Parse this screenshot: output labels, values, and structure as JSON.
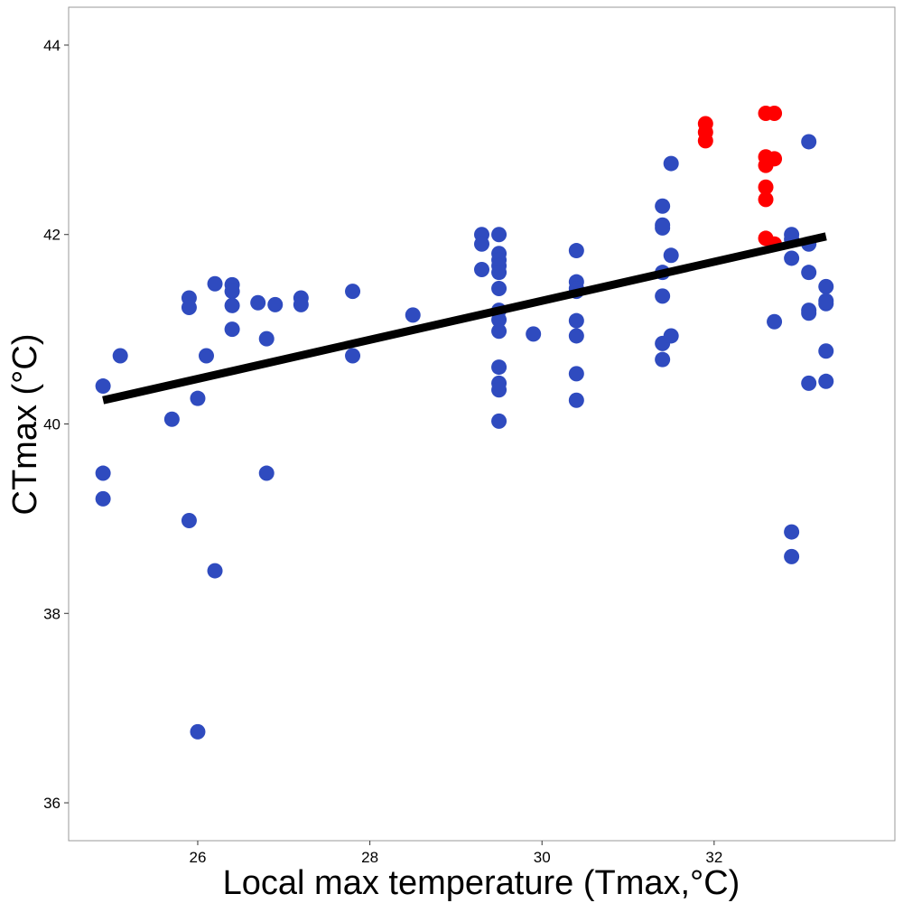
{
  "chart_data": {
    "type": "scatter",
    "title": "",
    "xlabel": "Local max temperature (Tmax,°C)",
    "ylabel": "CTmax (°C)",
    "xlim": [
      24.5,
      34.1
    ],
    "ylim": [
      35.6,
      44.4
    ],
    "x_ticks": [
      26,
      28,
      30,
      32
    ],
    "y_ticks": [
      36,
      38,
      40,
      42,
      44
    ],
    "x_tick_labels": [
      "26",
      "28",
      "30",
      "32"
    ],
    "y_tick_labels": [
      "36",
      "38",
      "40",
      "42",
      "44"
    ],
    "grid": false,
    "legend": "none",
    "colors": {
      "series_blue": "#2f4bbf",
      "series_red": "#ff0000",
      "fit_line": "#000000",
      "frame": "#999999"
    },
    "series": [
      {
        "color": "#2f4bbf",
        "points": [
          {
            "x": 24.9,
            "y": 40.4
          },
          {
            "x": 24.9,
            "y": 39.48
          },
          {
            "x": 24.9,
            "y": 39.21
          },
          {
            "x": 25.1,
            "y": 40.72
          },
          {
            "x": 25.7,
            "y": 40.05
          },
          {
            "x": 25.9,
            "y": 41.33
          },
          {
            "x": 25.9,
            "y": 41.23
          },
          {
            "x": 25.9,
            "y": 38.98
          },
          {
            "x": 26.0,
            "y": 40.27
          },
          {
            "x": 26.0,
            "y": 36.75
          },
          {
            "x": 26.1,
            "y": 40.72
          },
          {
            "x": 26.2,
            "y": 41.48
          },
          {
            "x": 26.2,
            "y": 38.45
          },
          {
            "x": 26.4,
            "y": 41.47
          },
          {
            "x": 26.4,
            "y": 41.4
          },
          {
            "x": 26.4,
            "y": 41.25
          },
          {
            "x": 26.4,
            "y": 41.0
          },
          {
            "x": 26.7,
            "y": 41.28
          },
          {
            "x": 26.8,
            "y": 40.9
          },
          {
            "x": 26.8,
            "y": 39.48
          },
          {
            "x": 26.9,
            "y": 41.26
          },
          {
            "x": 27.2,
            "y": 41.33
          },
          {
            "x": 27.2,
            "y": 41.26
          },
          {
            "x": 27.8,
            "y": 41.4
          },
          {
            "x": 27.8,
            "y": 40.72
          },
          {
            "x": 28.5,
            "y": 41.15
          },
          {
            "x": 29.3,
            "y": 42.0
          },
          {
            "x": 29.3,
            "y": 41.9
          },
          {
            "x": 29.3,
            "y": 41.63
          },
          {
            "x": 29.5,
            "y": 42.0
          },
          {
            "x": 29.5,
            "y": 41.8
          },
          {
            "x": 29.5,
            "y": 41.73
          },
          {
            "x": 29.5,
            "y": 41.67
          },
          {
            "x": 29.5,
            "y": 41.6
          },
          {
            "x": 29.5,
            "y": 41.43
          },
          {
            "x": 29.5,
            "y": 41.2
          },
          {
            "x": 29.5,
            "y": 41.1
          },
          {
            "x": 29.5,
            "y": 40.98
          },
          {
            "x": 29.5,
            "y": 40.6
          },
          {
            "x": 29.5,
            "y": 40.43
          },
          {
            "x": 29.5,
            "y": 40.36
          },
          {
            "x": 29.5,
            "y": 40.03
          },
          {
            "x": 29.9,
            "y": 40.95
          },
          {
            "x": 30.4,
            "y": 41.83
          },
          {
            "x": 30.4,
            "y": 41.5
          },
          {
            "x": 30.4,
            "y": 41.43
          },
          {
            "x": 30.4,
            "y": 41.4
          },
          {
            "x": 30.4,
            "y": 41.09
          },
          {
            "x": 30.4,
            "y": 40.93
          },
          {
            "x": 30.4,
            "y": 40.53
          },
          {
            "x": 30.4,
            "y": 40.25
          },
          {
            "x": 31.4,
            "y": 42.3
          },
          {
            "x": 31.4,
            "y": 42.1
          },
          {
            "x": 31.4,
            "y": 42.07
          },
          {
            "x": 31.4,
            "y": 41.6
          },
          {
            "x": 31.4,
            "y": 41.35
          },
          {
            "x": 31.4,
            "y": 40.85
          },
          {
            "x": 31.4,
            "y": 40.68
          },
          {
            "x": 31.5,
            "y": 42.75
          },
          {
            "x": 31.5,
            "y": 41.78
          },
          {
            "x": 31.5,
            "y": 40.93
          },
          {
            "x": 32.7,
            "y": 41.08
          },
          {
            "x": 32.9,
            "y": 42.0
          },
          {
            "x": 32.9,
            "y": 41.95
          },
          {
            "x": 32.9,
            "y": 41.75
          },
          {
            "x": 32.9,
            "y": 38.86
          },
          {
            "x": 32.9,
            "y": 38.6
          },
          {
            "x": 33.1,
            "y": 42.98
          },
          {
            "x": 33.1,
            "y": 41.9
          },
          {
            "x": 33.1,
            "y": 41.6
          },
          {
            "x": 33.1,
            "y": 41.2
          },
          {
            "x": 33.1,
            "y": 41.17
          },
          {
            "x": 33.1,
            "y": 40.43
          },
          {
            "x": 33.3,
            "y": 41.45
          },
          {
            "x": 33.3,
            "y": 41.3
          },
          {
            "x": 33.3,
            "y": 41.27
          },
          {
            "x": 33.3,
            "y": 40.77
          },
          {
            "x": 33.3,
            "y": 40.45
          }
        ]
      },
      {
        "color": "#ff0000",
        "points": [
          {
            "x": 31.9,
            "y": 43.17
          },
          {
            "x": 31.9,
            "y": 43.08
          },
          {
            "x": 31.9,
            "y": 42.99
          },
          {
            "x": 32.6,
            "y": 43.28
          },
          {
            "x": 32.6,
            "y": 42.82
          },
          {
            "x": 32.6,
            "y": 42.73
          },
          {
            "x": 32.6,
            "y": 42.5
          },
          {
            "x": 32.6,
            "y": 42.37
          },
          {
            "x": 32.6,
            "y": 41.96
          },
          {
            "x": 32.7,
            "y": 43.28
          },
          {
            "x": 32.7,
            "y": 42.8
          },
          {
            "x": 32.7,
            "y": 41.9
          }
        ]
      }
    ],
    "fit_line": {
      "x": [
        24.9,
        33.3
      ],
      "y": [
        40.25,
        41.98
      ],
      "color": "#000000"
    }
  }
}
